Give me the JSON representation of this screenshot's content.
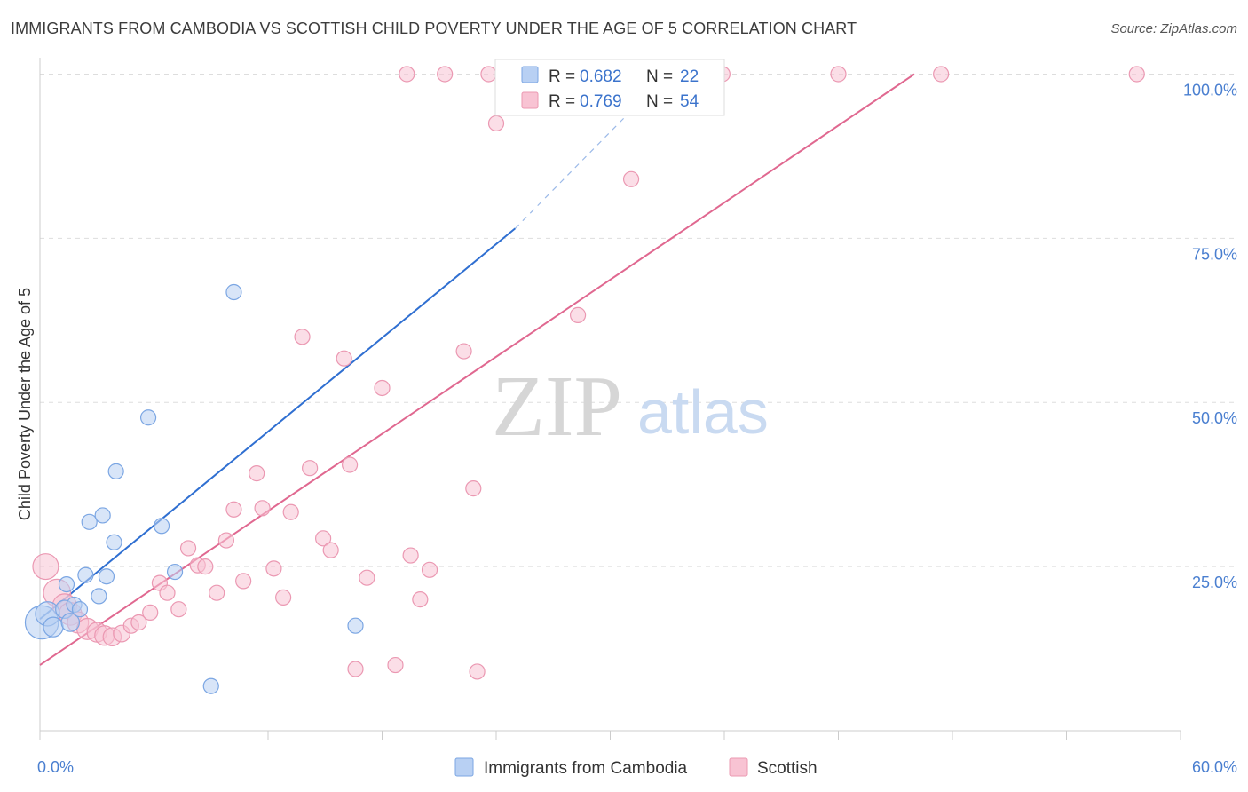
{
  "title": "IMMIGRANTS FROM CAMBODIA VS SCOTTISH CHILD POVERTY UNDER THE AGE OF 5 CORRELATION CHART",
  "source": "Source: ZipAtlas.com",
  "watermark": {
    "zip": "ZIP",
    "atlas": "atlas"
  },
  "colors": {
    "blue_fill": "#b8d0f3",
    "blue_stroke": "#7ba6e3",
    "blue_line": "#2f6fd1",
    "pink_fill": "#f8c3d3",
    "pink_stroke": "#eb98b2",
    "pink_line": "#e06890",
    "tick_text": "#4a7fd0",
    "grid": "#dddddd"
  },
  "legend": {
    "rows": [
      {
        "r_label": "R =",
        "r_value": "0.682",
        "n_label": "N =",
        "n_value": "22"
      },
      {
        "r_label": "R =",
        "r_value": "0.769",
        "n_label": "N =",
        "n_value": "54"
      }
    ]
  },
  "chart_data": {
    "type": "scatter",
    "title": "IMMIGRANTS FROM CAMBODIA VS SCOTTISH CHILD POVERTY UNDER THE AGE OF 5 CORRELATION CHART",
    "xlabel": "",
    "ylabel": "Child Poverty Under the Age of 5",
    "xlim": [
      0,
      60
    ],
    "ylim": [
      0,
      102.5
    ],
    "x_tick_labels": [
      "0.0%",
      "60.0%"
    ],
    "y_ticks": [
      25,
      50,
      75,
      100
    ],
    "y_tick_labels": [
      "25.0%",
      "50.0%",
      "75.0%",
      "100.0%"
    ],
    "grid": "horizontal dashed",
    "legend_position": "top-center",
    "series": [
      {
        "name": "Immigrants from Cambodia",
        "color": "#b8d0f3",
        "points": [
          {
            "x": 0.1,
            "y": 16.5,
            "s": 2.2
          },
          {
            "x": 0.4,
            "y": 17.8,
            "s": 1.6
          },
          {
            "x": 0.7,
            "y": 15.8,
            "s": 1.3
          },
          {
            "x": 1.3,
            "y": 18.5,
            "s": 1.2
          },
          {
            "x": 1.4,
            "y": 22.3,
            "s": 1.0
          },
          {
            "x": 1.6,
            "y": 16.5,
            "s": 1.2
          },
          {
            "x": 1.8,
            "y": 19.2,
            "s": 1.0
          },
          {
            "x": 2.1,
            "y": 18.5,
            "s": 1.0
          },
          {
            "x": 2.4,
            "y": 23.7,
            "s": 1.0
          },
          {
            "x": 2.6,
            "y": 31.8,
            "s": 1.0
          },
          {
            "x": 3.1,
            "y": 20.5,
            "s": 1.0
          },
          {
            "x": 3.3,
            "y": 32.8,
            "s": 1.0
          },
          {
            "x": 3.5,
            "y": 23.5,
            "s": 1.0
          },
          {
            "x": 3.9,
            "y": 28.7,
            "s": 1.0
          },
          {
            "x": 4.0,
            "y": 39.5,
            "s": 1.0
          },
          {
            "x": 5.7,
            "y": 47.7,
            "s": 1.0
          },
          {
            "x": 6.4,
            "y": 31.2,
            "s": 1.0
          },
          {
            "x": 7.1,
            "y": 24.2,
            "s": 1.0
          },
          {
            "x": 9.0,
            "y": 6.8,
            "s": 1.0
          },
          {
            "x": 10.2,
            "y": 66.8,
            "s": 1.0
          },
          {
            "x": 16.6,
            "y": 16.0,
            "s": 1.0
          },
          {
            "x": 24.7,
            "y": 100.0,
            "s": 1.0
          }
        ],
        "trendline": {
          "x": [
            0,
            25
          ],
          "y": [
            17.0,
            76.5
          ],
          "dashed_to": {
            "x": 33,
            "y": 100
          }
        }
      },
      {
        "name": "Scottish",
        "color": "#f8c3d3",
        "points": [
          {
            "x": 0.3,
            "y": 25.0,
            "s": 1.7
          },
          {
            "x": 0.9,
            "y": 21.0,
            "s": 1.8
          },
          {
            "x": 1.3,
            "y": 19.0,
            "s": 1.6
          },
          {
            "x": 1.6,
            "y": 17.8,
            "s": 1.5
          },
          {
            "x": 2.0,
            "y": 16.5,
            "s": 1.4
          },
          {
            "x": 2.5,
            "y": 15.5,
            "s": 1.4
          },
          {
            "x": 3.0,
            "y": 15.0,
            "s": 1.3
          },
          {
            "x": 3.4,
            "y": 14.5,
            "s": 1.3
          },
          {
            "x": 3.8,
            "y": 14.3,
            "s": 1.2
          },
          {
            "x": 4.3,
            "y": 14.8,
            "s": 1.1
          },
          {
            "x": 4.8,
            "y": 16.0,
            "s": 1.0
          },
          {
            "x": 5.2,
            "y": 16.5,
            "s": 1.0
          },
          {
            "x": 5.8,
            "y": 18.0,
            "s": 1.0
          },
          {
            "x": 6.3,
            "y": 22.5,
            "s": 1.0
          },
          {
            "x": 6.7,
            "y": 21.0,
            "s": 1.0
          },
          {
            "x": 7.3,
            "y": 18.5,
            "s": 1.0
          },
          {
            "x": 7.8,
            "y": 27.8,
            "s": 1.0
          },
          {
            "x": 8.3,
            "y": 25.2,
            "s": 1.0
          },
          {
            "x": 8.7,
            "y": 25.0,
            "s": 1.0
          },
          {
            "x": 9.3,
            "y": 21.0,
            "s": 1.0
          },
          {
            "x": 9.8,
            "y": 29.0,
            "s": 1.0
          },
          {
            "x": 10.2,
            "y": 33.7,
            "s": 1.0
          },
          {
            "x": 10.7,
            "y": 22.8,
            "s": 1.0
          },
          {
            "x": 11.4,
            "y": 39.2,
            "s": 1.0
          },
          {
            "x": 11.7,
            "y": 33.9,
            "s": 1.0
          },
          {
            "x": 12.3,
            "y": 24.7,
            "s": 1.0
          },
          {
            "x": 12.8,
            "y": 20.3,
            "s": 1.0
          },
          {
            "x": 13.2,
            "y": 33.3,
            "s": 1.0
          },
          {
            "x": 13.8,
            "y": 60.0,
            "s": 1.0
          },
          {
            "x": 14.2,
            "y": 40.0,
            "s": 1.0
          },
          {
            "x": 14.9,
            "y": 29.3,
            "s": 1.0
          },
          {
            "x": 15.3,
            "y": 27.5,
            "s": 1.0
          },
          {
            "x": 16.0,
            "y": 56.7,
            "s": 1.0
          },
          {
            "x": 16.3,
            "y": 40.5,
            "s": 1.0
          },
          {
            "x": 16.6,
            "y": 9.4,
            "s": 1.0
          },
          {
            "x": 17.2,
            "y": 23.3,
            "s": 1.0
          },
          {
            "x": 18.0,
            "y": 52.2,
            "s": 1.0
          },
          {
            "x": 18.7,
            "y": 10.0,
            "s": 1.0
          },
          {
            "x": 19.5,
            "y": 26.7,
            "s": 1.0
          },
          {
            "x": 20.0,
            "y": 20.0,
            "s": 1.0
          },
          {
            "x": 20.5,
            "y": 24.5,
            "s": 1.0
          },
          {
            "x": 22.3,
            "y": 57.8,
            "s": 1.0
          },
          {
            "x": 22.8,
            "y": 36.9,
            "s": 1.0
          },
          {
            "x": 23.0,
            "y": 9.0,
            "s": 1.0
          },
          {
            "x": 24.0,
            "y": 92.5,
            "s": 1.0
          },
          {
            "x": 28.3,
            "y": 63.3,
            "s": 1.0
          },
          {
            "x": 31.1,
            "y": 84.0,
            "s": 1.0
          },
          {
            "x": 19.3,
            "y": 100.0,
            "s": 1.0
          },
          {
            "x": 21.3,
            "y": 100.0,
            "s": 1.0
          },
          {
            "x": 23.6,
            "y": 100.0,
            "s": 1.0
          },
          {
            "x": 35.9,
            "y": 100.0,
            "s": 1.0
          },
          {
            "x": 42.0,
            "y": 100.0,
            "s": 1.0
          },
          {
            "x": 47.4,
            "y": 100.0,
            "s": 1.0
          },
          {
            "x": 57.7,
            "y": 100.0,
            "s": 1.0
          }
        ],
        "trendline": {
          "x": [
            0,
            46
          ],
          "y": [
            10.0,
            100.0
          ]
        }
      }
    ]
  }
}
